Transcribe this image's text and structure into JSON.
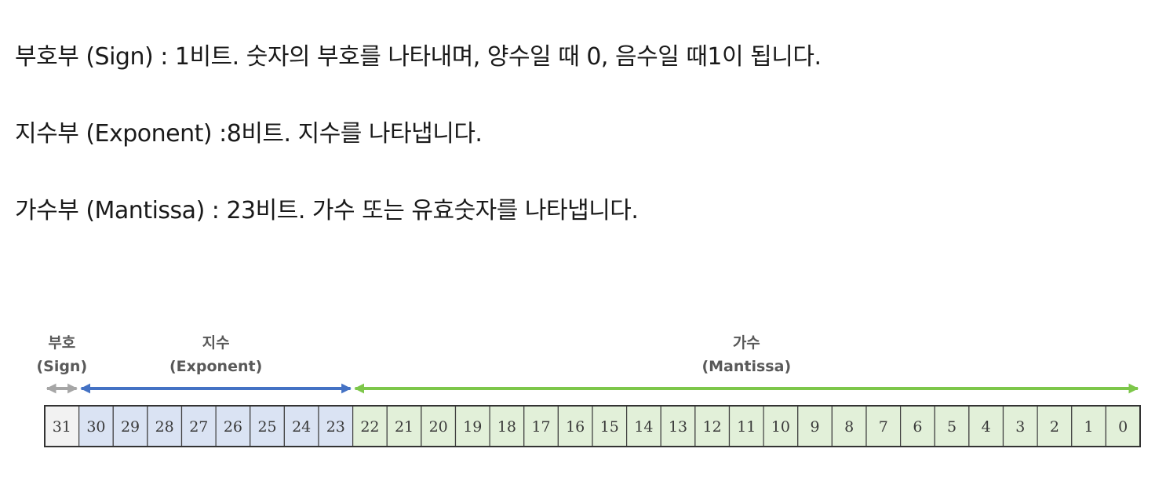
{
  "paragraphs": [
    "부호부 (Sign) : 1비트. 숫자의 부호를 나타내며, 양수일 때 0, 음수일 때1이 됩니다.",
    "지수부 (Exponent) :8비트. 지수를 나타냅니다.",
    "가수부 (Mantissa) : 23비트. 가수 또는 유효숫자를 나타냅니다."
  ],
  "diagram": {
    "sections": [
      {
        "name": "sign",
        "label_ko": "부호",
        "label_en": "(Sign)",
        "bit_from": 31,
        "bit_to": 31,
        "arrow_color": "#a6a6a6",
        "fill_color": "#f2f2f2"
      },
      {
        "name": "exponent",
        "label_ko": "지수",
        "label_en": "(Exponent)",
        "bit_from": 30,
        "bit_to": 23,
        "arrow_color": "#4472c4",
        "fill_color": "#dae3f3"
      },
      {
        "name": "mantissa",
        "label_ko": "가수",
        "label_en": "(Mantissa)",
        "bit_from": 22,
        "bit_to": 0,
        "arrow_color": "#7dc74a",
        "fill_color": "#e2f0d9"
      }
    ],
    "bits": [
      "31",
      "30",
      "29",
      "28",
      "27",
      "26",
      "25",
      "24",
      "23",
      "22",
      "21",
      "20",
      "19",
      "18",
      "17",
      "16",
      "15",
      "14",
      "13",
      "12",
      "11",
      "10",
      "9",
      "8",
      "7",
      "6",
      "5",
      "4",
      "3",
      "2",
      "1",
      "0"
    ]
  }
}
